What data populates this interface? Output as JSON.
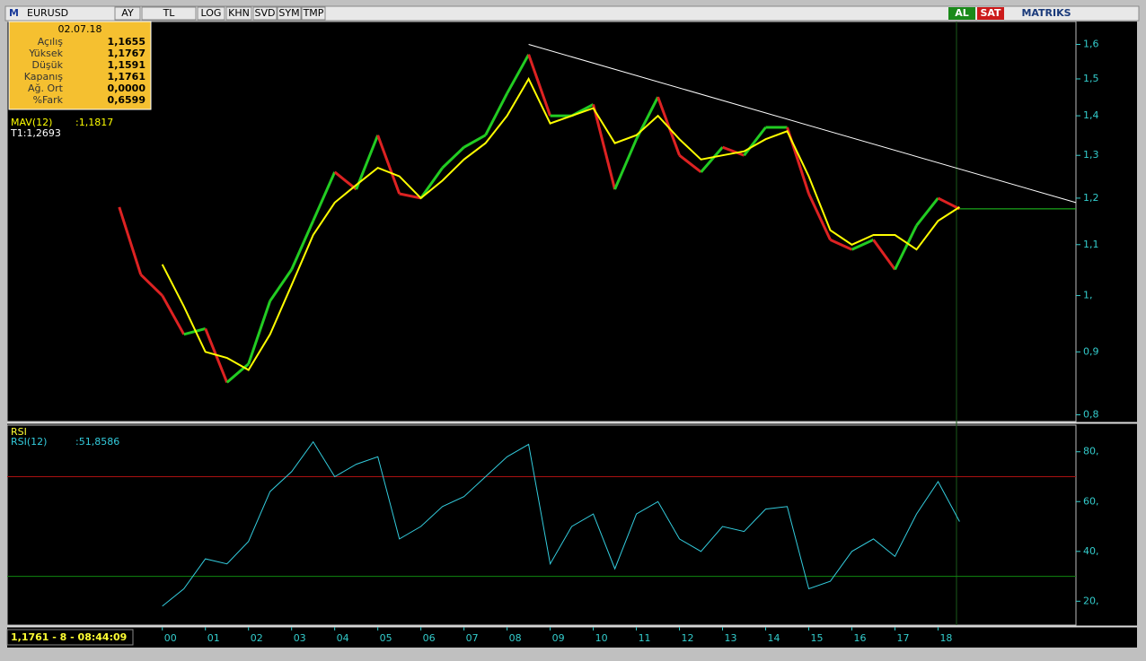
{
  "toolbar": {
    "logo": "M",
    "symbol": "EURUSD",
    "buttons": [
      "AY",
      "TL",
      "LOG",
      "KHN",
      "SVD",
      "SYM",
      "TMP"
    ],
    "buy": "AL",
    "sell": "SAT",
    "brand": "MATRIKS"
  },
  "info_box": {
    "date": "02.07.18",
    "rows": [
      [
        "Açılış",
        "1,1655"
      ],
      [
        "Yüksek",
        "1,1767"
      ],
      [
        "Düşük",
        "1,1591"
      ],
      [
        "Kapanış",
        "1,1761"
      ],
      [
        "Ağ. Ort",
        "0,0000"
      ],
      [
        "%Fark",
        "0,6599"
      ]
    ]
  },
  "status": "1,1761 - 8 - 08:44:09",
  "chart_data": [
    {
      "type": "line",
      "log_scale": true,
      "up_color": "#22cc22",
      "down_color": "#dd2222",
      "x": [
        1999,
        1999.5,
        2000,
        2000.5,
        2001,
        2001.5,
        2002,
        2002.5,
        2003,
        2003.5,
        2004,
        2004.5,
        2005,
        2005.5,
        2006,
        2006.5,
        2007,
        2007.5,
        2008,
        2008.5,
        2009,
        2009.5,
        2010,
        2010.5,
        2011,
        2011.5,
        2012,
        2012.5,
        2013,
        2013.5,
        2014,
        2014.5,
        2015,
        2015.5,
        2016,
        2016.5,
        2017,
        2017.5,
        2018,
        2018.5
      ],
      "series": [
        {
          "values": [
            1.18,
            1.04,
            1.0,
            0.93,
            0.94,
            0.85,
            0.88,
            0.99,
            1.05,
            1.15,
            1.26,
            1.22,
            1.35,
            1.21,
            1.2,
            1.27,
            1.32,
            1.35,
            1.46,
            1.57,
            1.4,
            1.4,
            1.43,
            1.22,
            1.34,
            1.45,
            1.3,
            1.26,
            1.32,
            1.3,
            1.37,
            1.37,
            1.21,
            1.11,
            1.09,
            1.11,
            1.05,
            1.14,
            1.2,
            1.1761
          ]
        },
        {
          "name": "MAV(12)",
          "label_value": ":1,1817",
          "color": "#ffff00",
          "values": [
            null,
            null,
            1.06,
            0.98,
            0.9,
            0.89,
            0.87,
            0.93,
            1.02,
            1.12,
            1.19,
            1.23,
            1.27,
            1.25,
            1.2,
            1.24,
            1.29,
            1.33,
            1.4,
            1.5,
            1.38,
            1.4,
            1.42,
            1.33,
            1.35,
            1.4,
            1.34,
            1.29,
            1.3,
            1.31,
            1.34,
            1.36,
            1.25,
            1.13,
            1.1,
            1.12,
            1.12,
            1.09,
            1.15,
            1.18
          ]
        }
      ],
      "annotation": "T1:1,2693",
      "trendline": {
        "color": "#ffffff",
        "x": [
          2008.5,
          2021.2
        ],
        "y": [
          1.6,
          1.19
        ]
      },
      "xlim": [
        1996.4,
        2021.2
      ],
      "ylim": [
        0.79,
        1.67
      ],
      "yticks": [
        {
          "value": 0.8,
          "label": "0,8"
        },
        {
          "value": 0.9,
          "label": "0,9"
        },
        {
          "value": 1,
          "label": "1,"
        },
        {
          "value": 1.1,
          "label": "1,1"
        },
        {
          "value": 1.2,
          "label": "1,2"
        },
        {
          "value": 1.3,
          "label": "1,3"
        },
        {
          "value": 1.4,
          "label": "1,4"
        },
        {
          "value": 1.5,
          "label": "1,5"
        },
        {
          "value": 1.6,
          "label": "1,6"
        }
      ]
    },
    {
      "type": "line",
      "title": "RSI",
      "x": [
        1999,
        1999.5,
        2000,
        2000.5,
        2001,
        2001.5,
        2002,
        2002.5,
        2003,
        2003.5,
        2004,
        2004.5,
        2005,
        2005.5,
        2006,
        2006.5,
        2007,
        2007.5,
        2008,
        2008.5,
        2009,
        2009.5,
        2010,
        2010.5,
        2011,
        2011.5,
        2012,
        2012.5,
        2013,
        2013.5,
        2014,
        2014.5,
        2015,
        2015.5,
        2016,
        2016.5,
        2017,
        2017.5,
        2018,
        2018.5
      ],
      "series": [
        {
          "name": "RSI(12)",
          "label_value": ":51,8586",
          "color": "#33ccdd",
          "values": [
            null,
            null,
            18,
            25,
            37,
            35,
            44,
            64,
            72,
            84,
            70,
            75,
            78,
            45,
            50,
            58,
            62,
            70,
            78,
            83,
            35,
            50,
            55,
            33,
            55,
            60,
            45,
            40,
            50,
            48,
            57,
            58,
            25,
            28,
            40,
            45,
            38,
            55,
            68,
            52
          ]
        }
      ],
      "levels": [
        {
          "value": 70,
          "color": "#aa1111"
        },
        {
          "value": 30,
          "color": "#118811"
        }
      ],
      "xlim": [
        1996.4,
        2021.2
      ],
      "ylim": [
        10.4,
        90.7
      ],
      "yticks": [
        {
          "value": 20,
          "label": "20,"
        },
        {
          "value": 40,
          "label": "40,"
        },
        {
          "value": 60,
          "label": "60,"
        },
        {
          "value": 80,
          "label": "80,"
        }
      ],
      "xticks": [
        {
          "value": 2000,
          "label": "00"
        },
        {
          "value": 2001,
          "label": "01"
        },
        {
          "value": 2002,
          "label": "02"
        },
        {
          "value": 2003,
          "label": "03"
        },
        {
          "value": 2004,
          "label": "04"
        },
        {
          "value": 2005,
          "label": "05"
        },
        {
          "value": 2006,
          "label": "06"
        },
        {
          "value": 2007,
          "label": "07"
        },
        {
          "value": 2008,
          "label": "08"
        },
        {
          "value": 2009,
          "label": "09"
        },
        {
          "value": 2010,
          "label": "10"
        },
        {
          "value": 2011,
          "label": "11"
        },
        {
          "value": 2012,
          "label": "12"
        },
        {
          "value": 2013,
          "label": "13"
        },
        {
          "value": 2014,
          "label": "14"
        },
        {
          "value": 2015,
          "label": "15"
        },
        {
          "value": 2016,
          "label": "16"
        },
        {
          "value": 2017,
          "label": "17"
        },
        {
          "value": 2018,
          "label": "18"
        }
      ]
    }
  ]
}
